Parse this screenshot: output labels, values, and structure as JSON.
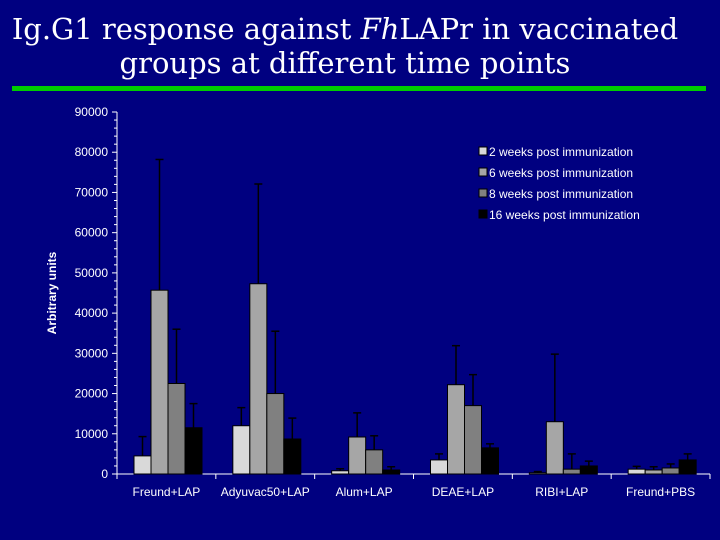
{
  "title": {
    "line1_prefix": "Ig.G1 response against ",
    "line1_italic": "Fh",
    "line1_suffix": "LAPr in vaccinated",
    "line2": "groups at different time points"
  },
  "colors": {
    "background": "#000080",
    "accent_rule": "#00cc00",
    "text": "#ffffff",
    "axis": "#ffffff"
  },
  "chart_data": {
    "type": "bar",
    "ylabel": "Arbitrary units",
    "xlabel": "",
    "ylim": [
      0,
      90000
    ],
    "yticks": [
      0,
      10000,
      20000,
      30000,
      40000,
      50000,
      60000,
      70000,
      80000,
      90000
    ],
    "ytick_labels": [
      "0",
      "10000",
      "20000",
      "30000",
      "40000",
      "50000",
      "60000",
      "70000",
      "80000",
      "90000"
    ],
    "categories": [
      "Freund+LAP",
      "Adyuvac50+LAP",
      "Alum+LAP",
      "DEAE+LAP",
      "RIBI+LAP",
      "Freund+PBS"
    ],
    "legend_position": "top-right",
    "grid": false,
    "series": [
      {
        "name": "2 weeks post immunization",
        "color": "#d9d9d9",
        "values": [
          4500,
          12000,
          800,
          3500,
          300,
          1200
        ],
        "errors": [
          4800,
          4500,
          500,
          1500,
          300,
          700
        ]
      },
      {
        "name": "6 weeks post immunization",
        "color": "#a6a6a6",
        "values": [
          45700,
          47300,
          9200,
          22200,
          13000,
          1000
        ],
        "errors": [
          32500,
          24800,
          6000,
          9700,
          16800,
          800
        ]
      },
      {
        "name": "8 weeks post immunization",
        "color": "#808080",
        "values": [
          22500,
          20000,
          6000,
          17000,
          1200,
          1500
        ],
        "errors": [
          13500,
          15500,
          3500,
          7700,
          3800,
          1000
        ]
      },
      {
        "name": "16 weeks post immunization",
        "color": "#000000",
        "values": [
          11500,
          8700,
          1000,
          6500,
          2000,
          3500
        ],
        "errors": [
          6000,
          5200,
          800,
          1000,
          1200,
          1500
        ]
      }
    ]
  }
}
